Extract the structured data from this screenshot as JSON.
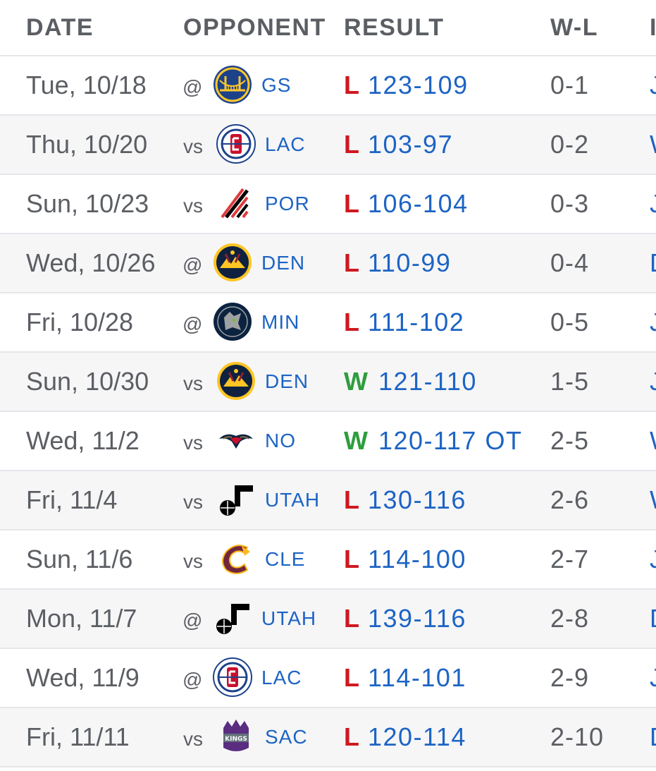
{
  "header": {
    "date": "DATE",
    "opponent": "OPPONENT",
    "result": "RESULT",
    "wl": "W-L",
    "partial": "I"
  },
  "games": [
    {
      "date": "Tue, 10/18",
      "homeaway": "@",
      "team": "GS",
      "logo": "warriors-logo",
      "result": "L",
      "score": "123-109",
      "record": "0-1",
      "partial": "J"
    },
    {
      "date": "Thu, 10/20",
      "homeaway": "vs",
      "team": "LAC",
      "logo": "clippers-logo",
      "result": "L",
      "score": "103-97",
      "record": "0-2",
      "partial": "W"
    },
    {
      "date": "Sun, 10/23",
      "homeaway": "vs",
      "team": "POR",
      "logo": "blazers-logo",
      "result": "L",
      "score": "106-104",
      "record": "0-3",
      "partial": "J"
    },
    {
      "date": "Wed, 10/26",
      "homeaway": "@",
      "team": "DEN",
      "logo": "nuggets-logo",
      "result": "L",
      "score": "110-99",
      "record": "0-4",
      "partial": "D"
    },
    {
      "date": "Fri, 10/28",
      "homeaway": "@",
      "team": "MIN",
      "logo": "timberwolves-logo",
      "result": "L",
      "score": "111-102",
      "record": "0-5",
      "partial": "J"
    },
    {
      "date": "Sun, 10/30",
      "homeaway": "vs",
      "team": "DEN",
      "logo": "nuggets-logo",
      "result": "W",
      "score": "121-110",
      "record": "1-5",
      "partial": "J"
    },
    {
      "date": "Wed, 11/2",
      "homeaway": "vs",
      "team": "NO",
      "logo": "pelicans-logo",
      "result": "W",
      "score": "120-117 OT",
      "record": "2-5",
      "partial": "W"
    },
    {
      "date": "Fri, 11/4",
      "homeaway": "vs",
      "team": "UTAH",
      "logo": "jazz-logo",
      "result": "L",
      "score": "130-116",
      "record": "2-6",
      "partial": "W"
    },
    {
      "date": "Sun, 11/6",
      "homeaway": "vs",
      "team": "CLE",
      "logo": "cavaliers-logo",
      "result": "L",
      "score": "114-100",
      "record": "2-7",
      "partial": "J"
    },
    {
      "date": "Mon, 11/7",
      "homeaway": "@",
      "team": "UTAH",
      "logo": "jazz-logo",
      "result": "L",
      "score": "139-116",
      "record": "2-8",
      "partial": "D"
    },
    {
      "date": "Wed, 11/9",
      "homeaway": "@",
      "team": "LAC",
      "logo": "clippers-logo",
      "result": "L",
      "score": "114-101",
      "record": "2-9",
      "partial": "J"
    },
    {
      "date": "Fri, 11/11",
      "homeaway": "vs",
      "team": "SAC",
      "logo": "kings-logo",
      "result": "L",
      "score": "120-114",
      "record": "2-10",
      "partial": "D"
    }
  ]
}
